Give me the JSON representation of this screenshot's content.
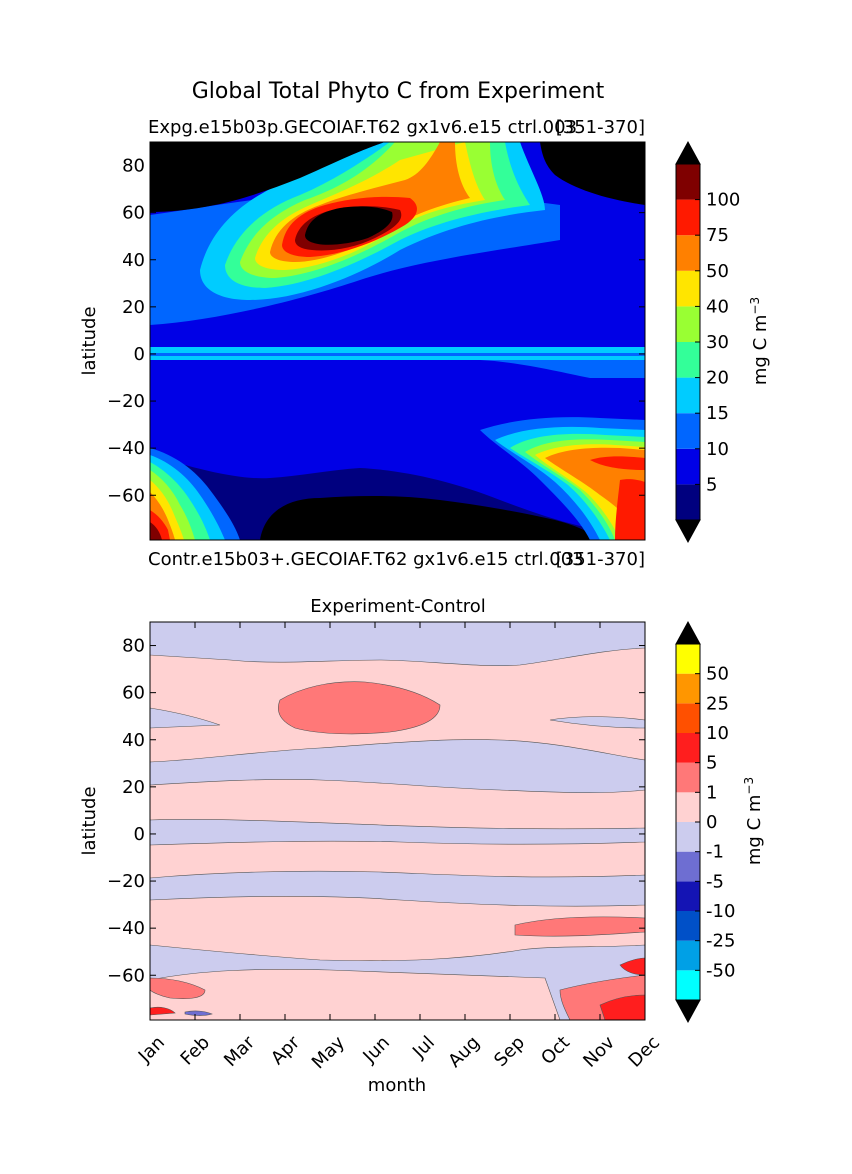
{
  "figure": {
    "title": "Global Total Phyto C from Experiment"
  },
  "chart_data": [
    {
      "type": "heatmap",
      "subtitle_left": "Expg.e15b03p.GECOIAF.T62 gx1v6.e15 ctrl.003",
      "subtitle_right": "[351-370]",
      "title": "",
      "xlabel": "",
      "ylabel": "latitude",
      "colorbar_label": "mg C m",
      "colorbar_label_exp": "−3",
      "ylim": [
        -79,
        90
      ],
      "yticks": [
        "80",
        "60",
        "40",
        "20",
        "0",
        "−20",
        "−40",
        "−60"
      ],
      "ytick_values": [
        80,
        60,
        40,
        20,
        0,
        -20,
        -40,
        -60
      ],
      "levels": [
        "5",
        "10",
        "15",
        "20",
        "30",
        "40",
        "50",
        "75",
        "100"
      ],
      "colors": [
        "#00007f",
        "#0000e6",
        "#0066ff",
        "#00ccff",
        "#33ff99",
        "#99ff33",
        "#ffe500",
        "#ff8000",
        "#ff1a00",
        "#7f0000"
      ],
      "extend_colors": [
        "#000000",
        "#000000"
      ]
    },
    {
      "type": "heatmap",
      "subtitle_left": "Contr.e15b03+.GECOIAF.T62 gx1v6.e15 ctrl.003",
      "subtitle_right": "[351-370]",
      "title": "Experiment-Control",
      "xlabel": "month",
      "ylabel": "latitude",
      "colorbar_label": "mg C m",
      "colorbar_label_exp": "−3",
      "ylim": [
        -79,
        90
      ],
      "yticks": [
        "80",
        "60",
        "40",
        "20",
        "0",
        "−20",
        "−40",
        "−60"
      ],
      "ytick_values": [
        80,
        60,
        40,
        20,
        0,
        -20,
        -40,
        -60
      ],
      "xticks": [
        "Jan",
        "Feb",
        "Mar",
        "Apr",
        "May",
        "Jun",
        "Jul",
        "Aug",
        "Sep",
        "Oct",
        "Nov",
        "Dec"
      ],
      "levels": [
        "-50",
        "-25",
        "-10",
        "-5",
        "-1",
        "0",
        "1",
        "5",
        "10",
        "25",
        "50"
      ],
      "colors": [
        "#00ffff",
        "#00a0e6",
        "#0050c8",
        "#1414b4",
        "#6e6ed2",
        "#ccccee",
        "#ffd2d2",
        "#ff7878",
        "#ff1e1e",
        "#ff5000",
        "#ff9600",
        "#ffff00"
      ],
      "extend_colors": [
        "#000000",
        "#000000"
      ]
    }
  ]
}
